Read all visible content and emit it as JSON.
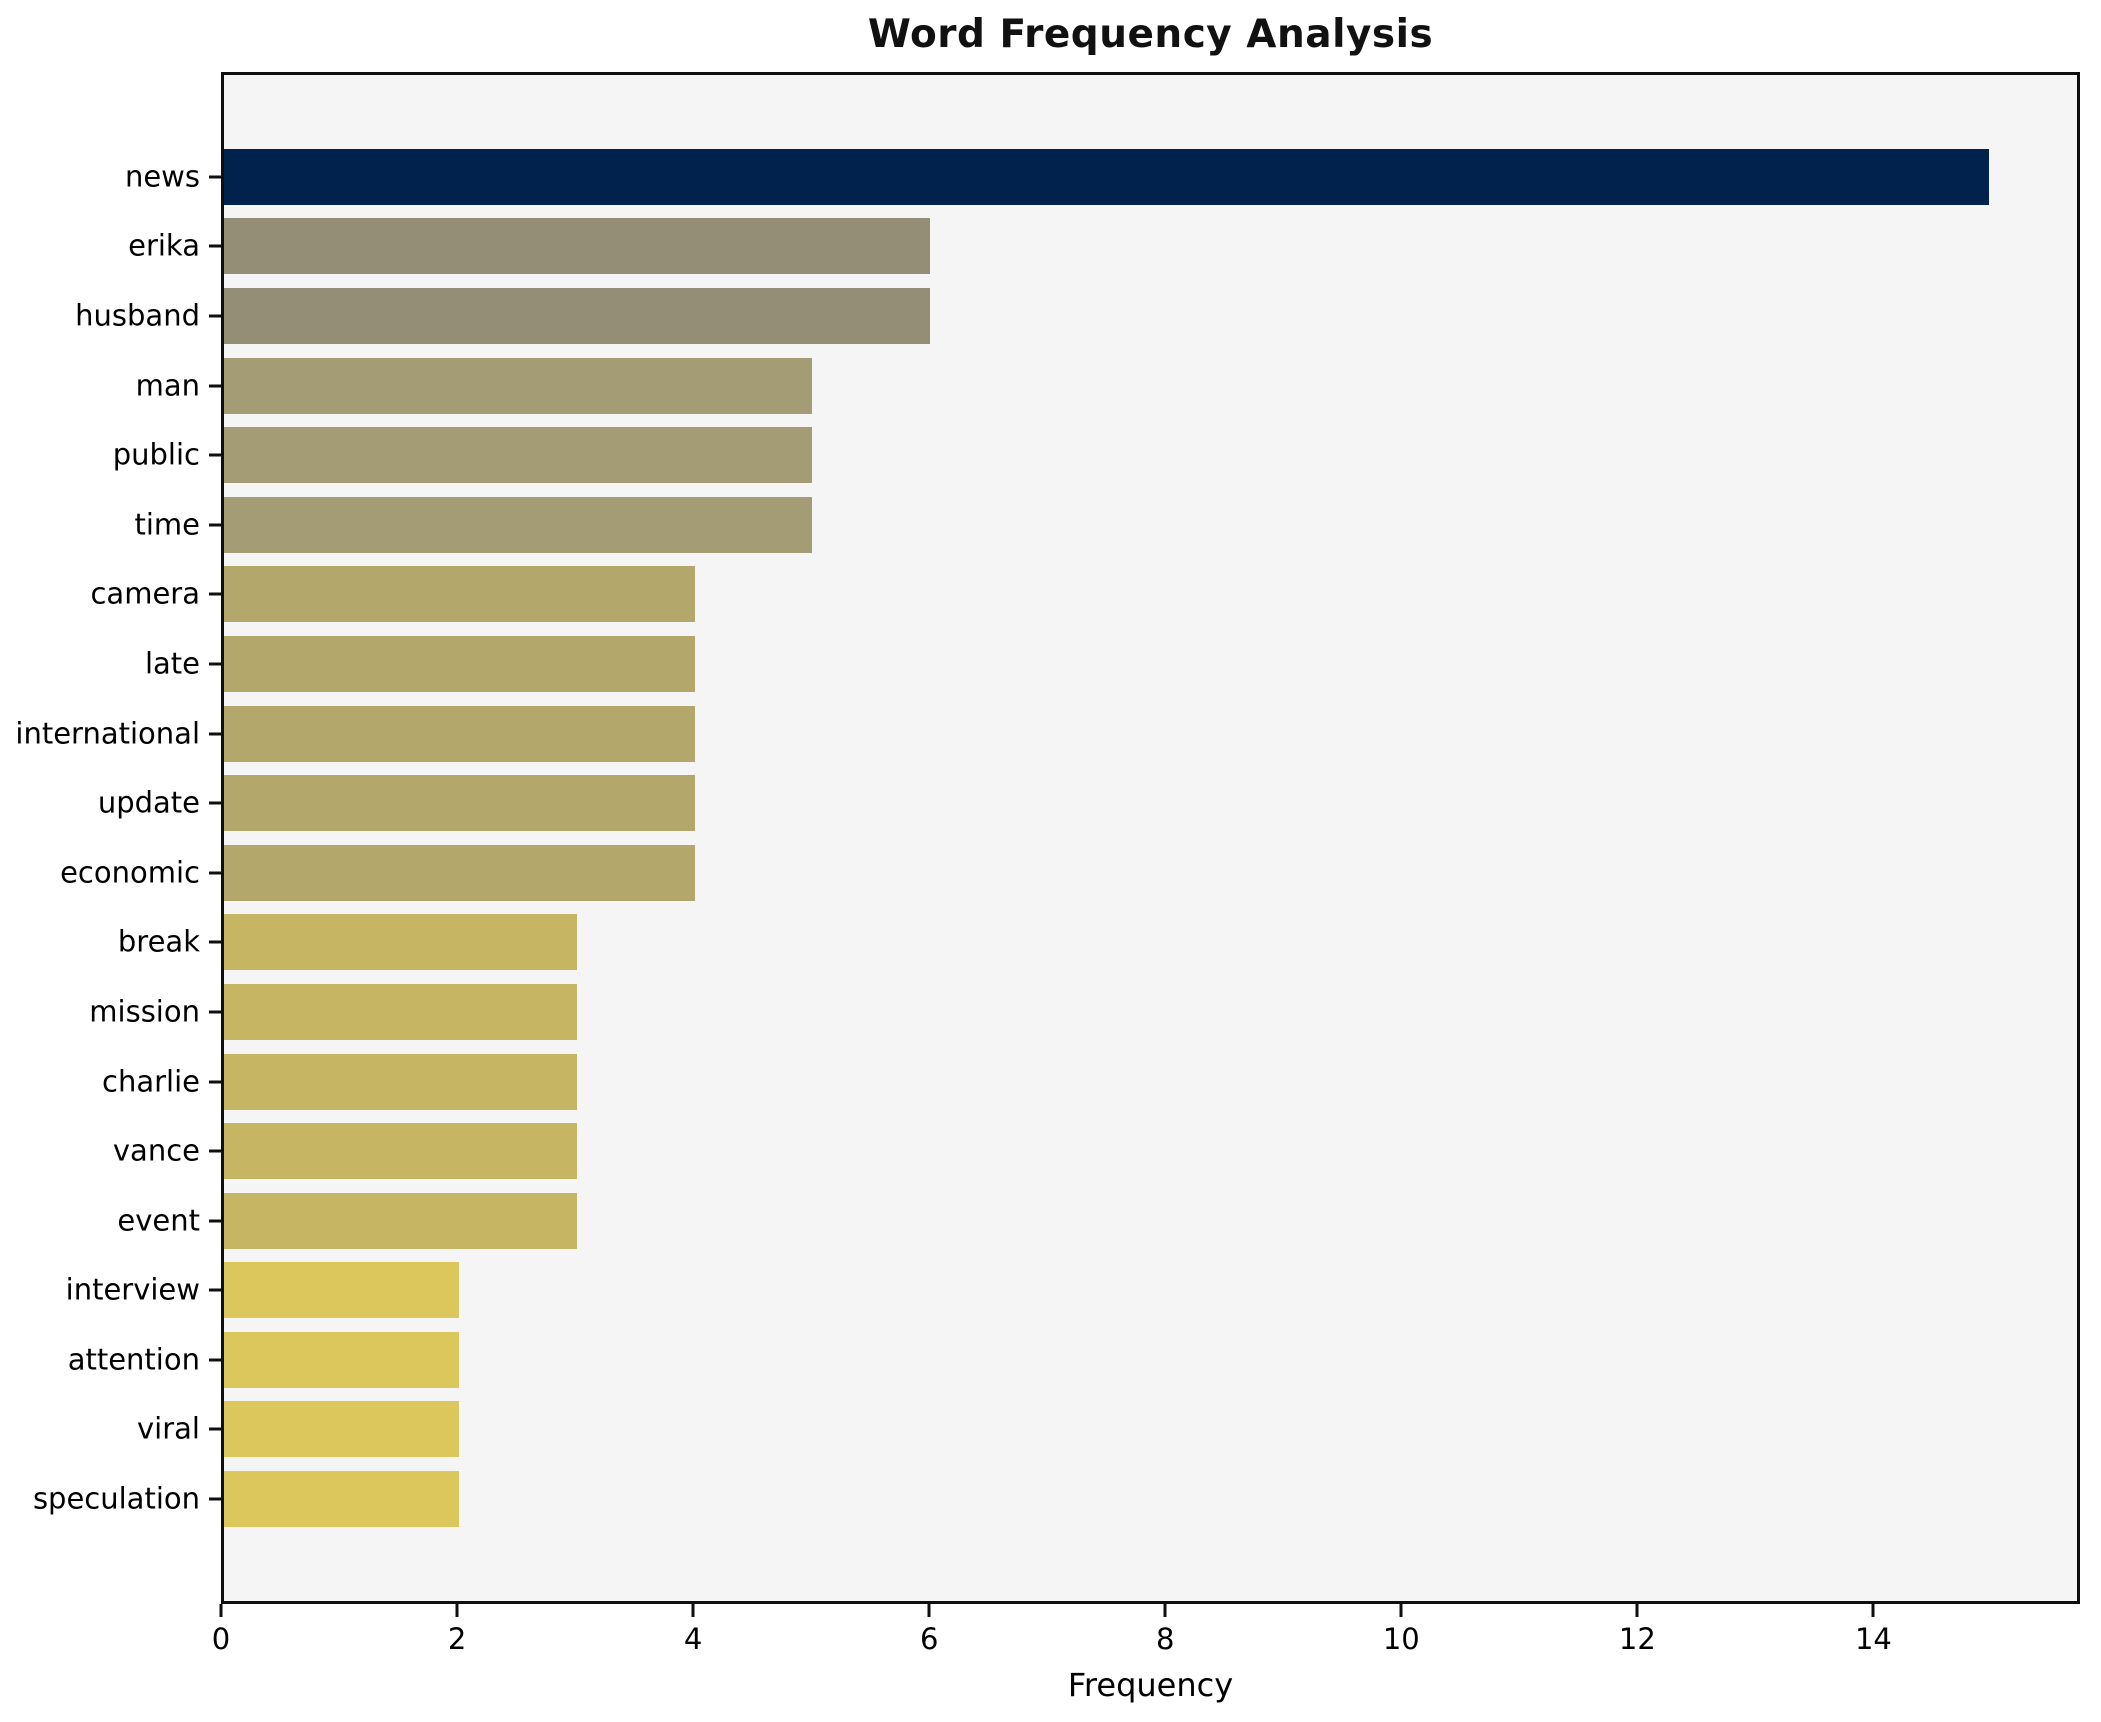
{
  "chart_data": {
    "type": "bar",
    "orientation": "horizontal",
    "title": "Word Frequency Analysis",
    "xlabel": "Frequency",
    "ylabel": "",
    "categories": [
      "news",
      "erika",
      "husband",
      "man",
      "public",
      "time",
      "camera",
      "late",
      "international",
      "update",
      "economic",
      "break",
      "mission",
      "charlie",
      "vance",
      "event",
      "interview",
      "attention",
      "viral",
      "speculation"
    ],
    "values": [
      15,
      6,
      6,
      5,
      5,
      5,
      4,
      4,
      4,
      4,
      4,
      3,
      3,
      3,
      3,
      3,
      2,
      2,
      2,
      2
    ],
    "bar_colors": [
      "#00224d",
      "#948e76",
      "#948e76",
      "#a39c74",
      "#a39c74",
      "#a39c74",
      "#b3a76b",
      "#b3a76b",
      "#b3a76b",
      "#b3a76b",
      "#b3a76b",
      "#c6b562",
      "#c6b562",
      "#c6b562",
      "#c6b562",
      "#c6b562",
      "#dbc75b",
      "#dbc75b",
      "#dbc75b",
      "#dbc75b"
    ],
    "xlim": [
      0,
      15.75
    ],
    "xticks": [
      0,
      2,
      4,
      6,
      8,
      10,
      12,
      14
    ],
    "grid": false,
    "legend": false,
    "colors": {
      "plot_bg": "#f5f5f6",
      "figure_bg": "#ffffff",
      "spine": "#0f0f0f",
      "text": "#000000",
      "max_bar": "#00224d",
      "min_bar": "#dbc75b"
    }
  }
}
